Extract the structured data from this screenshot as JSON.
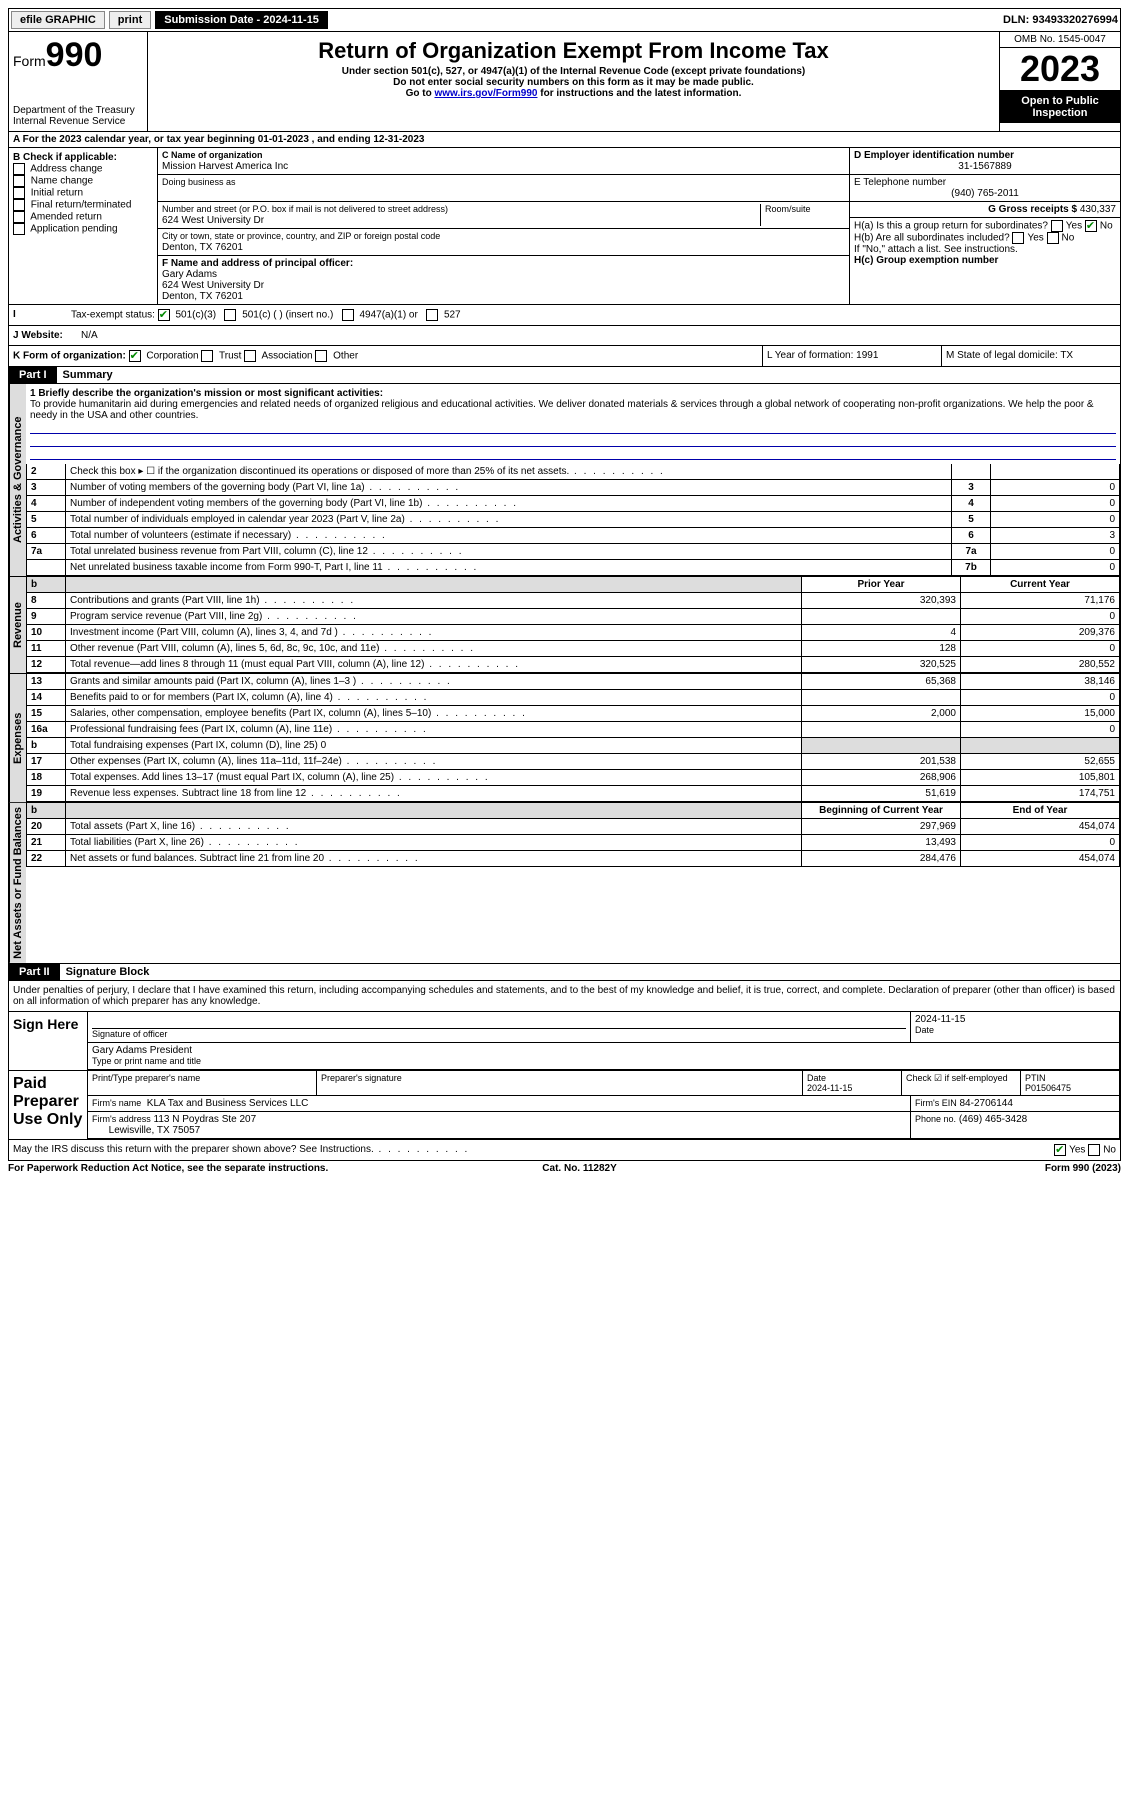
{
  "topbar": {
    "efile": "efile GRAPHIC",
    "print": "print",
    "sub_label": "Submission Date - 2024-11-15",
    "dln": "DLN: 93493320276994"
  },
  "header": {
    "form_prefix": "Form",
    "form_num": "990",
    "dept": "Department of the Treasury",
    "irs": "Internal Revenue Service",
    "title": "Return of Organization Exempt From Income Tax",
    "sub1": "Under section 501(c), 527, or 4947(a)(1) of the Internal Revenue Code (except private foundations)",
    "sub2": "Do not enter social security numbers on this form as it may be made public.",
    "sub3_pre": "Go to ",
    "sub3_link": "www.irs.gov/Form990",
    "sub3_post": " for instructions and the latest information.",
    "omb": "OMB No. 1545-0047",
    "year": "2023",
    "inspect": "Open to Public Inspection"
  },
  "rowA": "For the 2023 calendar year, or tax year beginning 01-01-2023   , and ending 12-31-2023",
  "colB": {
    "hdr": "B Check if applicable:",
    "items": [
      "Address change",
      "Name change",
      "Initial return",
      "Final return/terminated",
      "Amended return",
      "Application pending"
    ]
  },
  "colC": {
    "name_lbl": "C Name of organization",
    "name": "Mission Harvest America Inc",
    "dba_lbl": "Doing business as",
    "addr_lbl": "Number and street (or P.O. box if mail is not delivered to street address)",
    "room_lbl": "Room/suite",
    "addr": "624 West University Dr",
    "city_lbl": "City or town, state or province, country, and ZIP or foreign postal code",
    "city": "Denton, TX  76201",
    "f_lbl": "F Name and address of principal officer:",
    "f_name": "Gary Adams",
    "f_addr1": "624 West University Dr",
    "f_addr2": "Denton, TX  76201"
  },
  "colD": {
    "d_lbl": "D Employer identification number",
    "d_val": "31-1567889",
    "e_lbl": "E Telephone number",
    "e_val": "(940) 765-2011",
    "g_lbl": "G Gross receipts $",
    "g_val": "430,337",
    "ha_lbl": "H(a)  Is this a group return for subordinates?",
    "hb_lbl": "H(b)  Are all subordinates included?",
    "hb_note": "If \"No,\" attach a list. See instructions.",
    "hc_lbl": "H(c)  Group exemption number"
  },
  "rowI": {
    "lbl": "Tax-exempt status:",
    "opts": [
      "501(c)(3)",
      "501(c) (  ) (insert no.)",
      "4947(a)(1) or",
      "527"
    ]
  },
  "rowJ": {
    "lbl": "Website:",
    "val": "N/A"
  },
  "rowK": {
    "lbl": "K Form of organization:",
    "opts": [
      "Corporation",
      "Trust",
      "Association",
      "Other"
    ]
  },
  "rowL": {
    "lbl": "L Year of formation: 1991"
  },
  "rowM": {
    "lbl": "M State of legal domicile: TX"
  },
  "part1": {
    "hdr": "Part I",
    "title": "Summary"
  },
  "mission": {
    "lbl": "1   Briefly describe the organization's mission or most significant activities:",
    "text": "To provide humanitarin aid during emergencies and related needs of organized religious and educational activities. We deliver donated materials & services through a global network of cooperating non-profit organizations. We help the poor & needy in the USA and other countries."
  },
  "summary_rows": [
    {
      "n": "2",
      "t": "Check this box ▸  ☐  if the organization discontinued its operations or disposed of more than 25% of its net assets.",
      "box": "",
      "v": ""
    },
    {
      "n": "3",
      "t": "Number of voting members of the governing body (Part VI, line 1a)",
      "box": "3",
      "v": "0"
    },
    {
      "n": "4",
      "t": "Number of independent voting members of the governing body (Part VI, line 1b)",
      "box": "4",
      "v": "0"
    },
    {
      "n": "5",
      "t": "Total number of individuals employed in calendar year 2023 (Part V, line 2a)",
      "box": "5",
      "v": "0"
    },
    {
      "n": "6",
      "t": "Total number of volunteers (estimate if necessary)",
      "box": "6",
      "v": "3"
    },
    {
      "n": "7a",
      "t": "Total unrelated business revenue from Part VIII, column (C), line 12",
      "box": "7a",
      "v": "0"
    },
    {
      "n": "",
      "t": "Net unrelated business taxable income from Form 990-T, Part I, line 11",
      "box": "7b",
      "v": "0"
    }
  ],
  "financial": {
    "sections": [
      {
        "label": "Revenue",
        "col1": "Prior Year",
        "col2": "Current Year",
        "rows": [
          {
            "n": "8",
            "t": "Contributions and grants (Part VIII, line 1h)",
            "p": "320,393",
            "c": "71,176"
          },
          {
            "n": "9",
            "t": "Program service revenue (Part VIII, line 2g)",
            "p": "",
            "c": "0"
          },
          {
            "n": "10",
            "t": "Investment income (Part VIII, column (A), lines 3, 4, and 7d )",
            "p": "4",
            "c": "209,376"
          },
          {
            "n": "11",
            "t": "Other revenue (Part VIII, column (A), lines 5, 6d, 8c, 9c, 10c, and 11e)",
            "p": "128",
            "c": "0"
          },
          {
            "n": "12",
            "t": "Total revenue—add lines 8 through 11 (must equal Part VIII, column (A), line 12)",
            "p": "320,525",
            "c": "280,552"
          }
        ]
      },
      {
        "label": "Expenses",
        "rows": [
          {
            "n": "13",
            "t": "Grants and similar amounts paid (Part IX, column (A), lines 1–3 )",
            "p": "65,368",
            "c": "38,146"
          },
          {
            "n": "14",
            "t": "Benefits paid to or for members (Part IX, column (A), line 4)",
            "p": "",
            "c": "0"
          },
          {
            "n": "15",
            "t": "Salaries, other compensation, employee benefits (Part IX, column (A), lines 5–10)",
            "p": "2,000",
            "c": "15,000"
          },
          {
            "n": "16a",
            "t": "Professional fundraising fees (Part IX, column (A), line 11e)",
            "p": "",
            "c": "0"
          },
          {
            "n": "b",
            "t": "Total fundraising expenses (Part IX, column (D), line 25) 0",
            "p": null,
            "c": null
          },
          {
            "n": "17",
            "t": "Other expenses (Part IX, column (A), lines 11a–11d, 11f–24e)",
            "p": "201,538",
            "c": "52,655"
          },
          {
            "n": "18",
            "t": "Total expenses. Add lines 13–17 (must equal Part IX, column (A), line 25)",
            "p": "268,906",
            "c": "105,801"
          },
          {
            "n": "19",
            "t": "Revenue less expenses. Subtract line 18 from line 12",
            "p": "51,619",
            "c": "174,751"
          }
        ]
      },
      {
        "label": "Net Assets or Fund Balances",
        "col1": "Beginning of Current Year",
        "col2": "End of Year",
        "rows": [
          {
            "n": "20",
            "t": "Total assets (Part X, line 16)",
            "p": "297,969",
            "c": "454,074"
          },
          {
            "n": "21",
            "t": "Total liabilities (Part X, line 26)",
            "p": "13,493",
            "c": "0"
          },
          {
            "n": "22",
            "t": "Net assets or fund balances. Subtract line 21 from line 20",
            "p": "284,476",
            "c": "454,074"
          }
        ]
      }
    ]
  },
  "part2": {
    "hdr": "Part II",
    "title": "Signature Block"
  },
  "perjury": "Under penalties of perjury, I declare that I have examined this return, including accompanying schedules and statements, and to the best of my knowledge and belief, it is true, correct, and complete. Declaration of preparer (other than officer) is based on all information of which preparer has any knowledge.",
  "sign": {
    "left": "Sign Here",
    "sig_lbl": "Signature of officer",
    "date": "2024-11-15",
    "date_lbl": "Date",
    "name": "Gary Adams President",
    "name_lbl": "Type or print name and title"
  },
  "prep": {
    "left": "Paid Preparer Use Only",
    "h1": "Print/Type preparer's name",
    "h2": "Preparer's signature",
    "h3": "Date",
    "h4": "Check ☑ if self-employed",
    "h5": "PTIN",
    "date": "2024-11-15",
    "ptin": "P01506475",
    "firm_lbl": "Firm's name",
    "firm": "KLA Tax and Business Services LLC",
    "ein_lbl": "Firm's EIN",
    "ein": "84-2706144",
    "addr_lbl": "Firm's address",
    "addr1": "113 N Poydras Ste 207",
    "addr2": "Lewisville, TX  75057",
    "phone_lbl": "Phone no.",
    "phone": "(469) 465-3428"
  },
  "discuss": "May the IRS discuss this return with the preparer shown above? See Instructions.",
  "footer": {
    "l": "For Paperwork Reduction Act Notice, see the separate instructions.",
    "m": "Cat. No. 11282Y",
    "r": "Form 990 (2023)"
  },
  "labels": {
    "yes": "Yes",
    "no": "No",
    "b": "b"
  }
}
